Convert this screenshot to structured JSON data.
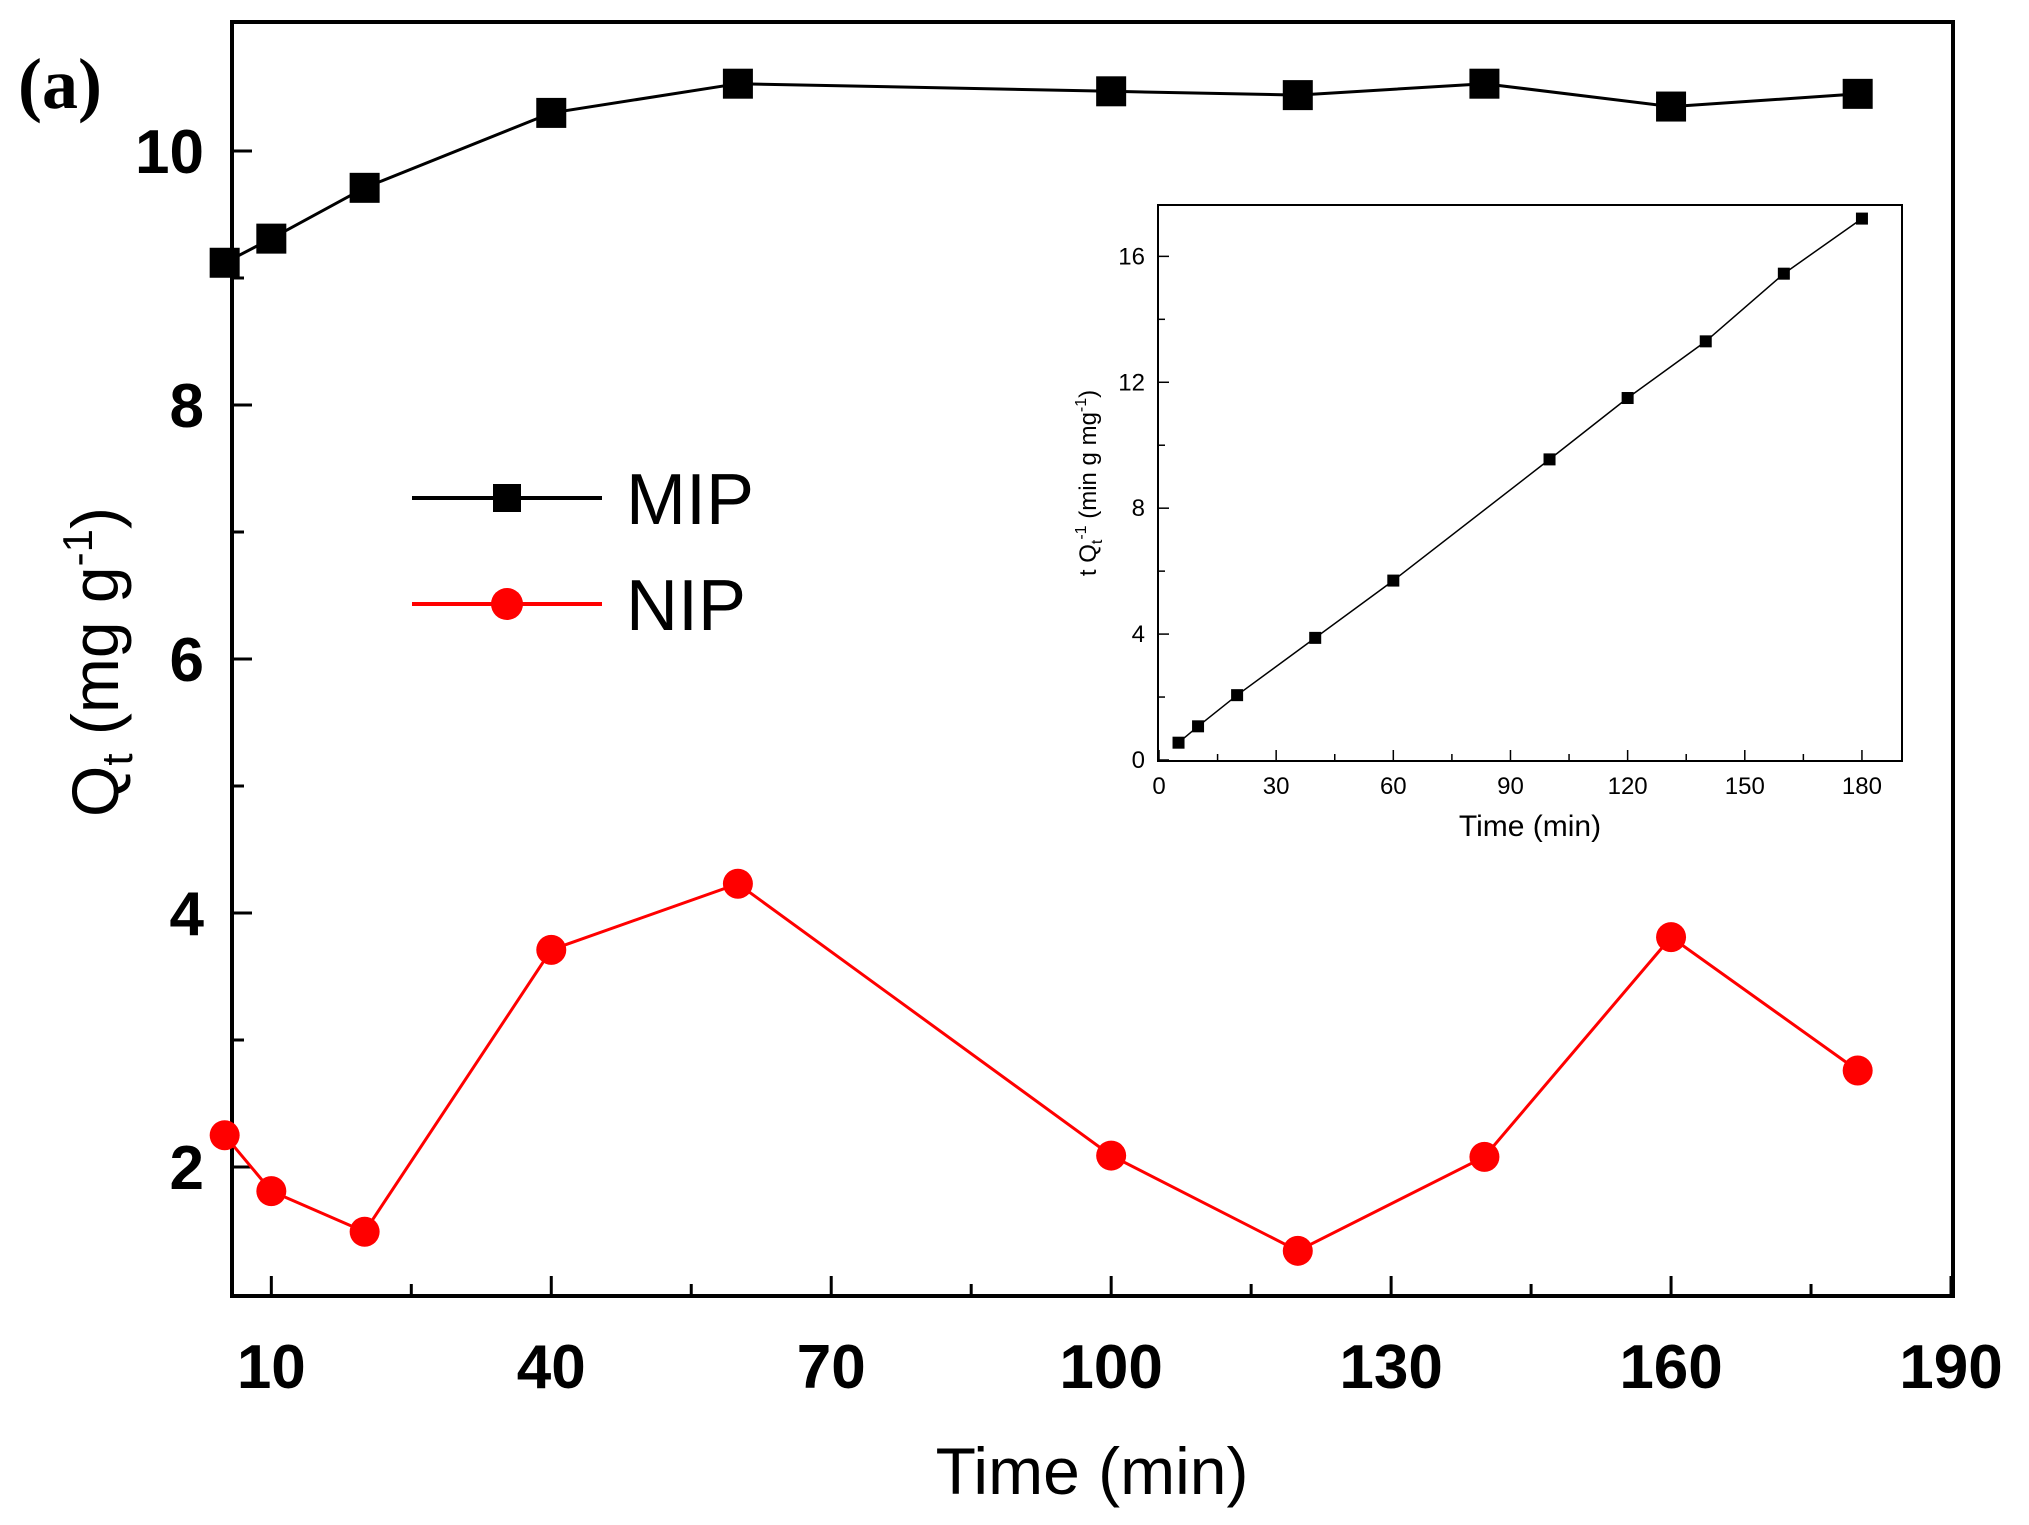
{
  "panel_label": "(a)",
  "chart_data": [
    {
      "type": "line",
      "title": "",
      "xlabel": "Time (min)",
      "ylabel": "Q",
      "ylabel_subscript": "t",
      "ylabel_units": "(mg g",
      "ylabel_units_sup": "-1",
      "ylabel_units_close": ")",
      "xlim": [
        6,
        190
      ],
      "ylim": [
        1,
        11
      ],
      "xticks": [
        10,
        40,
        70,
        100,
        130,
        160,
        190
      ],
      "yticks": [
        2,
        4,
        6,
        8,
        10
      ],
      "legend_position": "center-left",
      "series": [
        {
          "name": "MIP",
          "color": "#000000",
          "marker": "square",
          "x": [
            5,
            10,
            20,
            40,
            60,
            100,
            120,
            140,
            160,
            180
          ],
          "y": [
            9.12,
            9.31,
            9.71,
            10.3,
            10.53,
            10.47,
            10.44,
            10.53,
            10.35,
            10.45
          ]
        },
        {
          "name": "NIP",
          "color": "#ff0000",
          "marker": "circle",
          "x": [
            5,
            10,
            20,
            40,
            60,
            100,
            120,
            140,
            160,
            180
          ],
          "y": [
            2.25,
            1.81,
            1.49,
            3.71,
            4.23,
            2.09,
            1.34,
            2.08,
            3.81,
            2.76
          ]
        }
      ]
    },
    {
      "type": "line",
      "title": "",
      "role": "inset",
      "xlabel": "Time (min)",
      "ylabel": "t Q",
      "ylabel_subscript": "t",
      "ylabel_sup": "-1",
      "ylabel_units": " (min g mg",
      "ylabel_units_sup": "-1",
      "ylabel_units_close": ")",
      "xlim": [
        0,
        190
      ],
      "ylim": [
        0,
        17.6
      ],
      "xticks": [
        0,
        30,
        60,
        90,
        120,
        150,
        180
      ],
      "yticks": [
        0,
        4,
        8,
        12,
        16
      ],
      "series": [
        {
          "name": "t/Qt",
          "color": "#000000",
          "marker": "square",
          "x": [
            5,
            10,
            20,
            40,
            60,
            100,
            120,
            140,
            160,
            180
          ],
          "y": [
            0.55,
            1.07,
            2.06,
            3.88,
            5.7,
            9.55,
            11.5,
            13.3,
            15.45,
            17.2
          ]
        }
      ]
    }
  ]
}
